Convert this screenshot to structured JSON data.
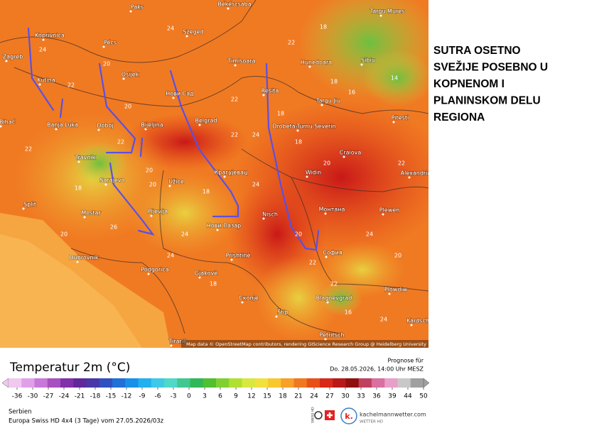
{
  "map": {
    "cities": [
      "Paks",
      "Békéscsaba",
      "Targu Mures",
      "Koprivnica",
      "Pécs",
      "Szeged",
      "Timisoara",
      "Hunedoara",
      "Sibiu",
      "Zagreb",
      "Osijek",
      "Kutina",
      "Нови Сад",
      "Resita",
      "Targu Jiu",
      "Pitesti",
      "Banja Luka",
      "Doboj",
      "Bijeljina",
      "Belgrad",
      "Drobeta-Turnu Severin",
      "Craiova",
      "Bihać",
      "Travnik",
      "Sarajevo",
      "Крагујевац",
      "Užice",
      "Widin",
      "Alexandria",
      "Split",
      "Mostar",
      "Pljevlja",
      "Нови Пазар",
      "Nisch",
      "Монтана",
      "Plewen",
      "Dubrovnik",
      "Podgorica",
      "Prishtinë",
      "София",
      "Gjakovë",
      "Скопје",
      "Blagoevgrad",
      "Plowdiw",
      "Štip",
      "Petritsch",
      "Kardsch",
      "Tiranë"
    ],
    "temperatures": [
      24,
      22,
      18,
      24,
      22,
      20,
      18,
      16,
      14,
      22,
      24,
      20,
      22,
      18,
      24,
      20,
      18,
      22,
      20,
      24,
      18,
      20,
      22,
      24,
      18,
      20,
      22,
      16,
      20,
      24,
      26,
      22,
      18,
      20,
      22,
      24
    ]
  },
  "attribution": "Map data © OpenStreetMap contributors, rendering GIScience Research Group @ Heidelberg University",
  "annotation": [
    "SUTRA OSETNO",
    "SVEŽIJE POSEBNO U",
    "KOPNENOM I",
    "PLANINSKOM DELU",
    "REGIONA"
  ],
  "legend": {
    "title": "Temperatur 2m (°C)",
    "prognose_label": "Prognose für",
    "prognose_date": "Do. 28.05.2026, 14:00 Uhr MESZ",
    "ticks": [
      -36,
      -30,
      -27,
      -24,
      -21,
      -18,
      -15,
      -12,
      -9,
      -6,
      -3,
      0,
      3,
      6,
      9,
      12,
      15,
      18,
      21,
      24,
      27,
      30,
      33,
      36,
      39,
      44,
      50
    ]
  },
  "footer": {
    "region": "Serbien",
    "model": "Europa Swiss HD 4x4 (3 Tage) vom 27.05.2026/03z"
  },
  "logo": {
    "swiss": "SWISS HD",
    "mark": "k.",
    "brand": "kachelmannwetter.com",
    "sub": "WETTER HD"
  }
}
